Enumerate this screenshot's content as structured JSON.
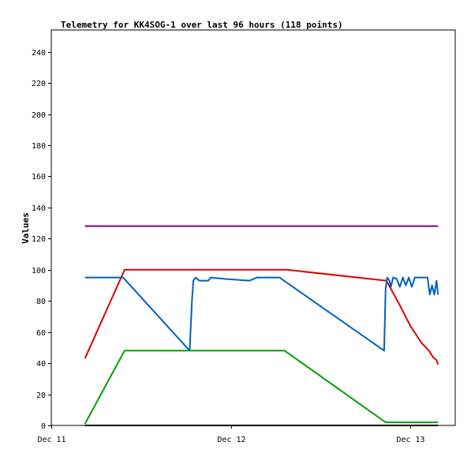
{
  "chart_data": {
    "type": "line",
    "title": "Telemetry for KK4SOG-1 over last 96 hours (118 points)",
    "ylabel": "Values",
    "xlabel": "",
    "ylim": [
      0,
      254
    ],
    "y_ticks": [
      0,
      20,
      40,
      60,
      80,
      100,
      120,
      140,
      160,
      180,
      200,
      220,
      240
    ],
    "x_ticks": [
      {
        "label": "Dec 11",
        "hours": 0
      },
      {
        "label": "Dec 12",
        "hours": 24
      },
      {
        "label": "Dec 13",
        "hours": 48
      }
    ],
    "x_units": "hours since Dec 11 00:00",
    "xlim": [
      0,
      54
    ],
    "grid": false,
    "legend": "none",
    "series": [
      {
        "color": "#800080",
        "points": [
          [
            4.5,
            128
          ],
          [
            51.7,
            128
          ]
        ]
      },
      {
        "color": "#e00000",
        "points": [
          [
            4.5,
            43
          ],
          [
            9.8,
            100
          ],
          [
            31.5,
            100
          ],
          [
            44.8,
            93
          ],
          [
            46.5,
            78
          ],
          [
            48.0,
            64
          ],
          [
            49.5,
            53
          ],
          [
            50.5,
            48
          ],
          [
            51.0,
            44
          ],
          [
            51.5,
            42
          ],
          [
            51.7,
            39
          ]
        ]
      },
      {
        "color": "#0060c0",
        "points": [
          [
            4.5,
            95
          ],
          [
            9.6,
            95
          ],
          [
            18.5,
            48
          ],
          [
            18.8,
            80
          ],
          [
            19.0,
            93
          ],
          [
            19.3,
            95
          ],
          [
            19.8,
            93
          ],
          [
            21.0,
            93
          ],
          [
            21.3,
            95
          ],
          [
            23.5,
            94
          ],
          [
            26.5,
            93
          ],
          [
            27.5,
            95
          ],
          [
            30.5,
            95
          ],
          [
            44.5,
            48
          ],
          [
            44.7,
            88
          ],
          [
            44.9,
            95
          ],
          [
            45.2,
            93
          ],
          [
            45.4,
            89
          ],
          [
            45.7,
            95
          ],
          [
            46.2,
            94
          ],
          [
            46.6,
            89
          ],
          [
            47.0,
            95
          ],
          [
            47.4,
            90
          ],
          [
            47.8,
            95
          ],
          [
            48.2,
            89
          ],
          [
            48.6,
            95
          ],
          [
            50.3,
            95
          ],
          [
            50.6,
            84
          ],
          [
            50.9,
            90
          ],
          [
            51.2,
            84
          ],
          [
            51.5,
            93
          ],
          [
            51.7,
            84
          ]
        ]
      },
      {
        "color": "#00a000",
        "points": [
          [
            4.5,
            1
          ],
          [
            9.8,
            48
          ],
          [
            31.2,
            48
          ],
          [
            44.7,
            2
          ],
          [
            51.7,
            2
          ]
        ]
      },
      {
        "color": "#000000",
        "points": [
          [
            4.5,
            0
          ],
          [
            51.7,
            0
          ]
        ]
      }
    ]
  }
}
